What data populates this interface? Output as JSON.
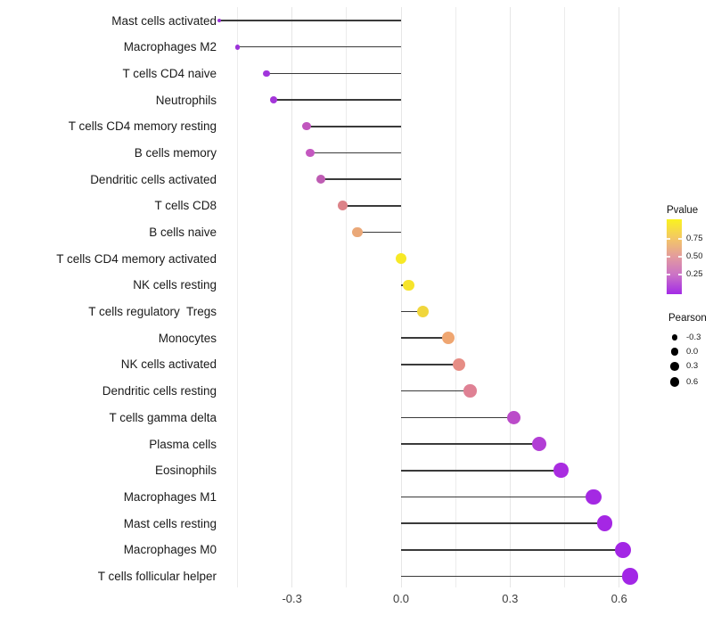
{
  "chart_data": {
    "type": "scatter",
    "subtype": "lollipop",
    "title": "",
    "xlabel": "",
    "ylabel": "",
    "orientation": "horizontal",
    "grid": "vertical-only",
    "xlim": [
      -0.565,
      0.69
    ],
    "x_axis": {
      "tick_labels": [
        "-0.3",
        "0.0",
        "0.3",
        "0.6"
      ],
      "tick_values": [
        -0.3,
        0.0,
        0.3,
        0.6
      ],
      "minor_tick_values": [
        -0.45,
        -0.15,
        0.15,
        0.45
      ]
    },
    "baseline_value": 0.0,
    "categories": [
      "Mast cells activated",
      "Macrophages M2",
      "T cells CD4 naive",
      "Neutrophils",
      "T cells CD4 memory resting",
      "B cells memory",
      "Dendritic cells activated",
      "T cells CD8",
      "B cells naive",
      "T cells CD4 memory activated",
      "NK cells resting",
      "T cells regulatory  Tregs",
      "Monocytes",
      "NK cells activated",
      "Dendritic cells resting",
      "T cells gamma delta",
      "Plasma cells",
      "Eosinophils",
      "Macrophages M1",
      "Mast cells resting",
      "Macrophages M0",
      "T cells follicular helper"
    ],
    "series": [
      {
        "name": "Pearson",
        "values": [
          -0.5,
          -0.45,
          -0.37,
          -0.35,
          -0.26,
          -0.25,
          -0.22,
          -0.16,
          -0.12,
          0.0,
          0.02,
          0.06,
          0.13,
          0.16,
          0.19,
          0.31,
          0.38,
          0.44,
          0.53,
          0.56,
          0.61,
          0.63
        ]
      }
    ],
    "point_colors": [
      "#9932D6",
      "#9C33D9",
      "#A135DC",
      "#A436D9",
      "#C156BE",
      "#C458C0",
      "#BE5CB3",
      "#DC8389",
      "#EAA878",
      "#F7E926",
      "#F6E42B",
      "#F0D63C",
      "#EFA671",
      "#E68D85",
      "#DF8194",
      "#BB4BC9",
      "#B23ED5",
      "#A92CE0",
      "#A429E3",
      "#A527E4",
      "#A326E5",
      "#A227E6"
    ],
    "stem_color": "#3a3a3a",
    "legend_position": "right"
  },
  "legends": {
    "pvalue": {
      "title": "Pvalue",
      "tick_labels": [
        "0.75",
        "0.50",
        "0.25"
      ],
      "gradient_stops": [
        "#FAF21F",
        "#F3C667",
        "#E39B9E",
        "#CB73C6",
        "#A32BE6"
      ],
      "top_color_meaning": "high Pvalue (yellow)",
      "bottom_color_meaning": "low Pvalue (purple)"
    },
    "pearson": {
      "title": "Pearson",
      "tick_labels": [
        "-0.3",
        "0.0",
        "0.3",
        "0.6"
      ],
      "tick_values": [
        -0.3,
        0.0,
        0.3,
        0.6
      ],
      "dot_color": "#000000"
    }
  }
}
